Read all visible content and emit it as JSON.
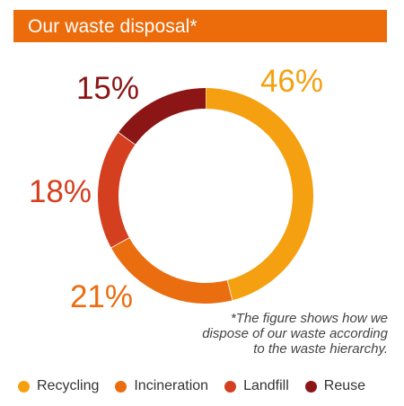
{
  "header": {
    "title": "Our waste disposal*"
  },
  "footnote": {
    "line1": "*The figure shows how we",
    "line2": "dispose of our waste according",
    "line3": "to the waste hierarchy."
  },
  "colors": {
    "header_bg": "#ec6b0b",
    "recycling": "#f4a010",
    "incineration": "#ea6d10",
    "landfill": "#d43f1f",
    "reuse": "#8c1515"
  },
  "chart_data": {
    "type": "pie",
    "subtype": "donut",
    "title": "Our waste disposal*",
    "categories": [
      "Recycling",
      "Incineration",
      "Landfill",
      "Reuse"
    ],
    "values": [
      46,
      21,
      18,
      15
    ],
    "labels": [
      "46%",
      "21%",
      "18%",
      "15%"
    ],
    "unit": "%",
    "legend_position": "bottom"
  }
}
